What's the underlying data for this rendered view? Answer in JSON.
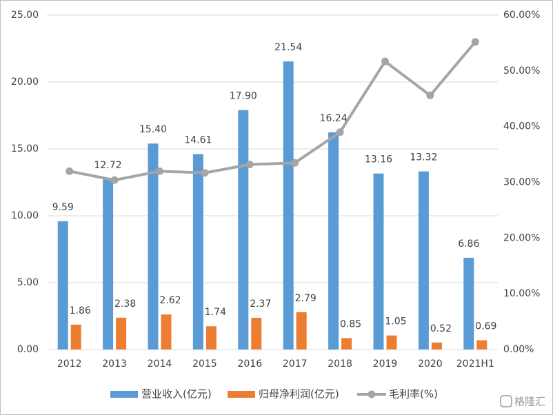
{
  "chart_data": {
    "type": "bar-line",
    "categories": [
      "2012",
      "2013",
      "2014",
      "2015",
      "2016",
      "2017",
      "2018",
      "2019",
      "2020",
      "2021H1"
    ],
    "series": [
      {
        "name": "营业收入(亿元)",
        "color": "#5b9bd5",
        "type": "bar",
        "values": [
          9.59,
          12.72,
          15.4,
          14.61,
          17.9,
          21.54,
          16.24,
          13.16,
          13.32,
          6.86
        ],
        "value_labels": [
          "9.59",
          "12.72",
          "15.40",
          "14.61",
          "17.90",
          "21.54",
          "16.24",
          "13.16",
          "13.32",
          "6.86"
        ]
      },
      {
        "name": "归母净利润(亿元)",
        "color": "#ed7d31",
        "type": "bar",
        "values": [
          1.86,
          2.38,
          2.62,
          1.74,
          2.37,
          2.79,
          0.85,
          1.05,
          0.52,
          0.69
        ],
        "value_labels": [
          "1.86",
          "2.38",
          "2.62",
          "1.74",
          "2.37",
          "2.79",
          "0.85",
          "1.05",
          "0.52",
          "0.69"
        ]
      },
      {
        "name": "毛利率(%)",
        "color": "#a5a5a5",
        "type": "line",
        "axis": "y2",
        "values": [
          32.0,
          30.4,
          32.0,
          31.7,
          33.2,
          33.5,
          39.0,
          51.7,
          45.6,
          55.2
        ]
      }
    ],
    "ylim": [
      0,
      25
    ],
    "yticks": [
      {
        "value": 0,
        "label": "0.00"
      },
      {
        "value": 5,
        "label": "5.00"
      },
      {
        "value": 10,
        "label": "10.00"
      },
      {
        "value": 15,
        "label": "15.00"
      },
      {
        "value": 20,
        "label": "20.00"
      },
      {
        "value": 25,
        "label": "25.00"
      }
    ],
    "y2lim": [
      0,
      60
    ],
    "y2ticks": [
      {
        "value": 0,
        "label": "0.00%"
      },
      {
        "value": 10,
        "label": "10.00%"
      },
      {
        "value": 20,
        "label": "20.00%"
      },
      {
        "value": 30,
        "label": "30.00%"
      },
      {
        "value": 40,
        "label": "40.00%"
      },
      {
        "value": 50,
        "label": "50.00%"
      },
      {
        "value": 60,
        "label": "60.00%"
      }
    ],
    "grid": true,
    "legend": "bottom",
    "watermark": "格隆汇"
  }
}
